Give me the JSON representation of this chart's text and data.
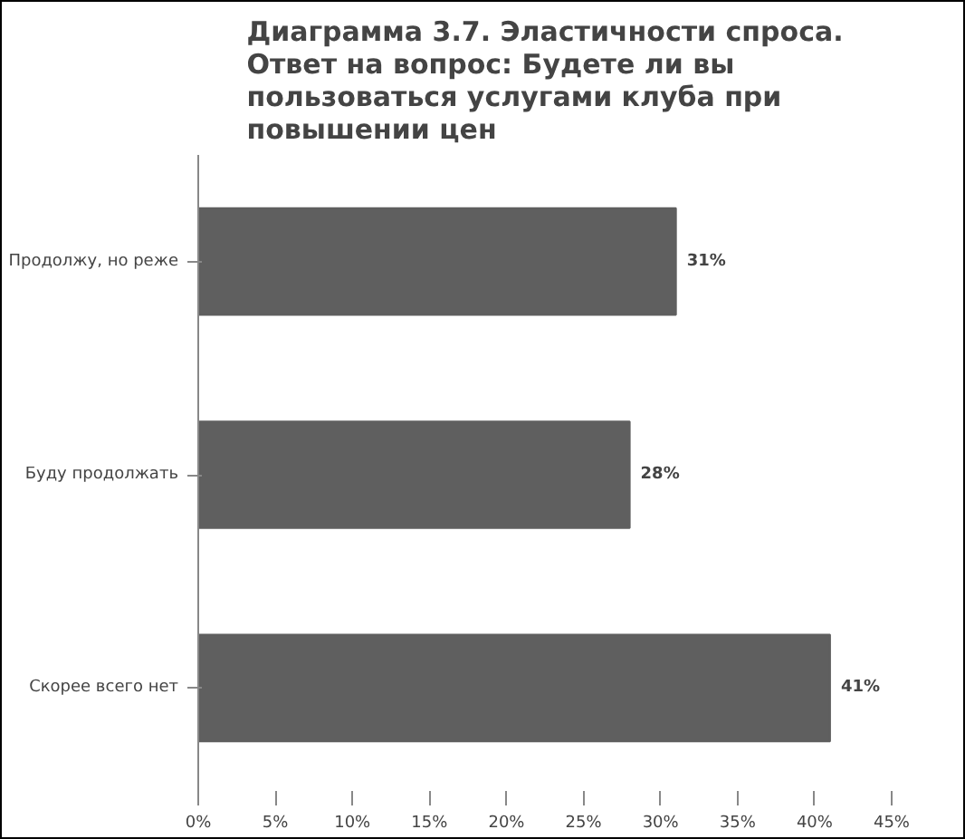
{
  "chart_data": {
    "type": "bar",
    "orientation": "horizontal",
    "title": "Диаграмма 3.7. Эластичности спроса. Ответ на вопрос: Будете ли вы пользоваться услугами клуба при повышении цен",
    "categories": [
      "Продолжу, но реже",
      "Буду продолжать",
      "Скорее всего нет"
    ],
    "values": [
      31,
      28,
      41
    ],
    "value_labels": [
      "31%",
      "28%",
      "41%"
    ],
    "color": "#5f5f5f",
    "xlim": [
      0,
      45
    ],
    "xticks": [
      {
        "value": 0,
        "label": "0%"
      },
      {
        "value": 5,
        "label": "5%"
      },
      {
        "value": 10,
        "label": "10%"
      },
      {
        "value": 15,
        "label": "15%"
      },
      {
        "value": 20,
        "label": "20%"
      },
      {
        "value": 25,
        "label": "25%"
      },
      {
        "value": 30,
        "label": "30%"
      },
      {
        "value": 35,
        "label": "35%"
      },
      {
        "value": 40,
        "label": "40%"
      },
      {
        "value": 45,
        "label": "45%"
      }
    ],
    "grid": false
  }
}
